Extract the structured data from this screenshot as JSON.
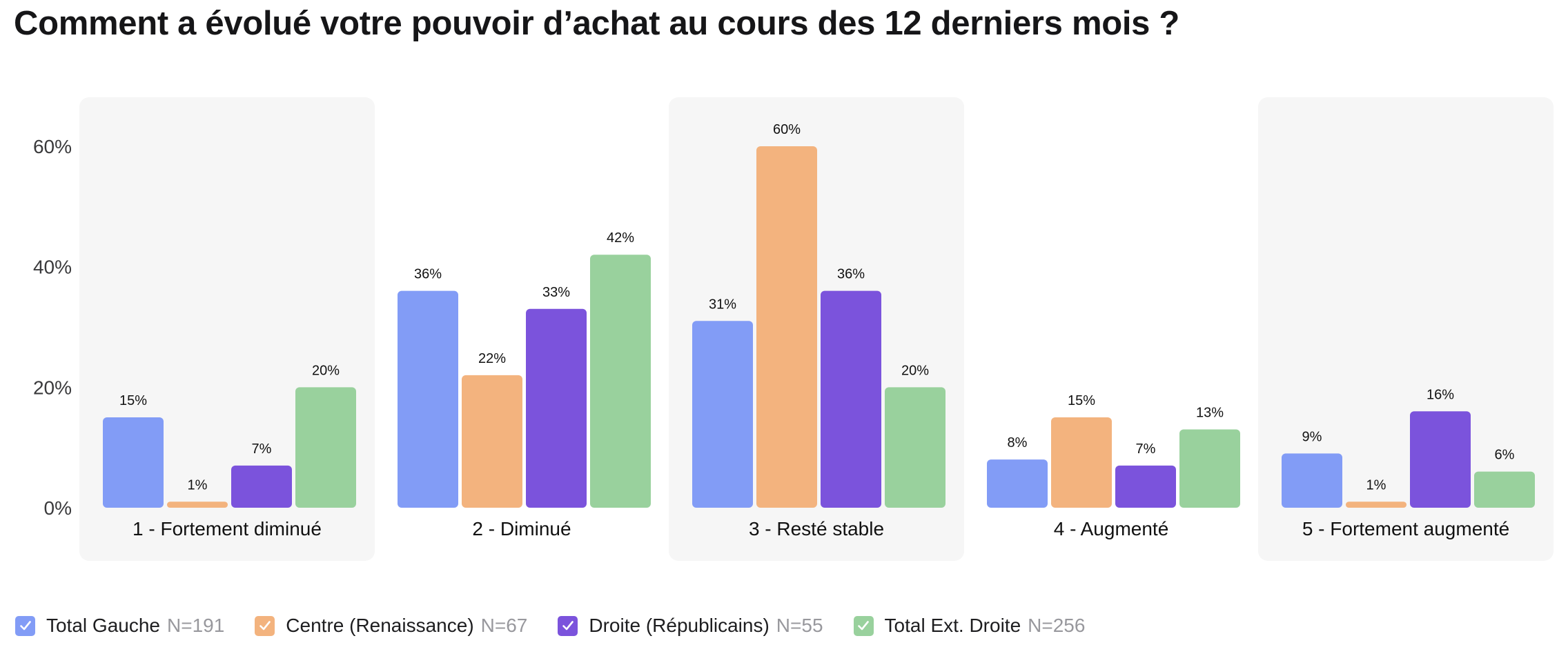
{
  "title": "Comment a évolué votre pouvoir d’achat au cours des 12 derniers mois ?",
  "colors": {
    "panel": "#f6f6f6",
    "series": [
      "#829cf6",
      "#f3b37e",
      "#7b53dc",
      "#99d19d"
    ]
  },
  "legend": [
    {
      "name": "Total Gauche",
      "n": "N=191",
      "icon": "checkmark-icon"
    },
    {
      "name": "Centre (Renaissance)",
      "n": "N=67",
      "icon": "checkmark-icon"
    },
    {
      "name": "Droite (Républicains)",
      "n": "N=55",
      "icon": "checkmark-icon"
    },
    {
      "name": "Total Ext. Droite",
      "n": "N=256",
      "icon": "checkmark-icon"
    }
  ],
  "chart_data": {
    "type": "bar",
    "title": "Comment a évolué votre pouvoir d’achat au cours des 12 derniers mois ?",
    "categories": [
      "1 - Fortement diminué",
      "2 - Diminué",
      "3 - Resté stable",
      "4 - Augmenté",
      "5 - Fortement augmenté"
    ],
    "series": [
      {
        "name": "Total Gauche",
        "values": [
          15,
          36,
          31,
          8,
          9
        ],
        "labels": [
          "15%",
          "36%",
          "31%",
          "8%",
          "9%"
        ]
      },
      {
        "name": "Centre (Renaissance)",
        "values": [
          1,
          22,
          60,
          15,
          1
        ],
        "labels": [
          "1%",
          "22%",
          "60%",
          "15%",
          "1%"
        ]
      },
      {
        "name": "Droite (Républicains)",
        "values": [
          7,
          33,
          36,
          7,
          16
        ],
        "labels": [
          "7%",
          "33%",
          "36%",
          "7%",
          "16%"
        ]
      },
      {
        "name": "Total Ext. Droite",
        "values": [
          20,
          42,
          20,
          13,
          6
        ],
        "labels": [
          "20%",
          "42%",
          "20%",
          "13%",
          "6%"
        ]
      }
    ],
    "yticks": [
      "0%",
      "20%",
      "40%",
      "60%"
    ],
    "ytick_values": [
      0,
      20,
      40,
      60
    ],
    "ylim": [
      0,
      60
    ],
    "unit": "%",
    "grid": false,
    "legend_position": "bottom-left"
  }
}
